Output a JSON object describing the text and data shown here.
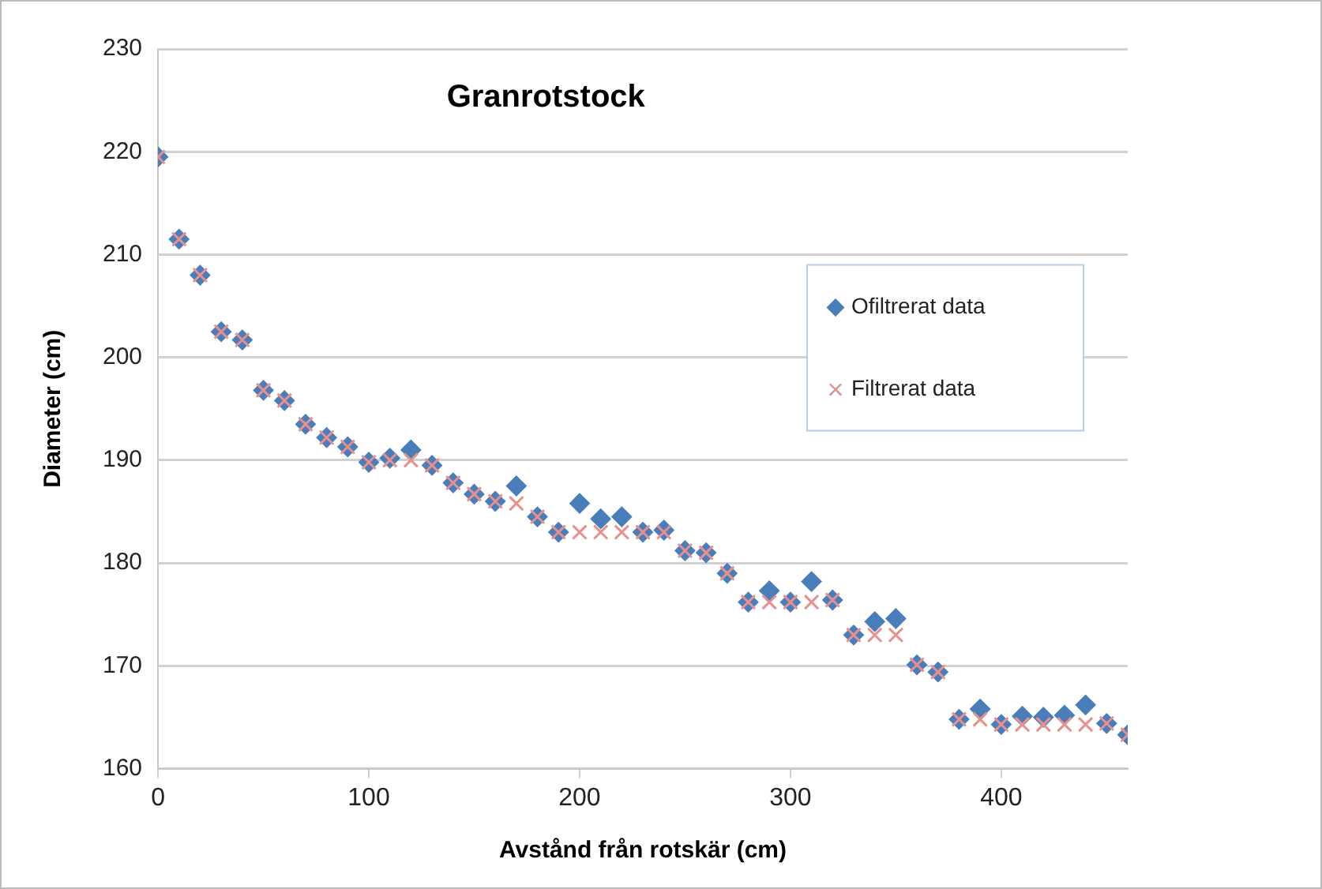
{
  "chart_data": {
    "type": "scatter",
    "title": "Granrotstock",
    "xlabel": "Avstånd från rotskär (cm)",
    "ylabel": "Diameter (cm)",
    "x": [
      0,
      10,
      20,
      30,
      40,
      50,
      60,
      70,
      80,
      90,
      100,
      110,
      120,
      130,
      140,
      150,
      160,
      170,
      180,
      190,
      200,
      210,
      220,
      230,
      240,
      250,
      260,
      270,
      280,
      290,
      300,
      310,
      320,
      330,
      340,
      350,
      360,
      370,
      380,
      390,
      400,
      410,
      420,
      430,
      440,
      450,
      460
    ],
    "series": [
      {
        "name": "Ofiltrerat data",
        "color": "#4a7ebb",
        "marker": "diamond",
        "values": [
          219.5,
          211.5,
          208,
          202.5,
          201.7,
          196.8,
          195.8,
          193.5,
          192.2,
          191.3,
          189.8,
          190.2,
          191,
          189.5,
          187.8,
          186.7,
          186,
          187.5,
          184.5,
          183,
          185.8,
          184.3,
          184.5,
          183,
          183.2,
          181.2,
          181,
          179,
          176.2,
          177.3,
          176.2,
          178.2,
          176.4,
          173,
          174.3,
          174.6,
          170.1,
          169.4,
          164.8,
          165.8,
          164.3,
          165.1,
          165,
          165.2,
          166.2,
          164.4,
          163.3
        ]
      },
      {
        "name": "Filtrerat data",
        "color": "#e8908c",
        "marker": "cross",
        "values": [
          219.5,
          211.5,
          208,
          202.5,
          201.7,
          196.8,
          195.8,
          193.5,
          192.2,
          191.3,
          189.8,
          190,
          190,
          189.5,
          187.8,
          186.7,
          186,
          185.8,
          184.5,
          183,
          183,
          183,
          183,
          183,
          183,
          181.2,
          181,
          179,
          176.2,
          176.2,
          176.2,
          176.2,
          176.4,
          173,
          173,
          173,
          170.1,
          169.4,
          164.8,
          164.8,
          164.3,
          164.3,
          164.3,
          164.3,
          164.3,
          164.4,
          163.3
        ]
      }
    ],
    "xlim": [
      0,
      460
    ],
    "xticks": [
      0,
      100,
      200,
      300,
      400
    ],
    "ylim": [
      160,
      230
    ],
    "yticks": [
      160,
      170,
      180,
      190,
      200,
      210,
      220,
      230
    ],
    "grid": "y",
    "legend": "right"
  }
}
